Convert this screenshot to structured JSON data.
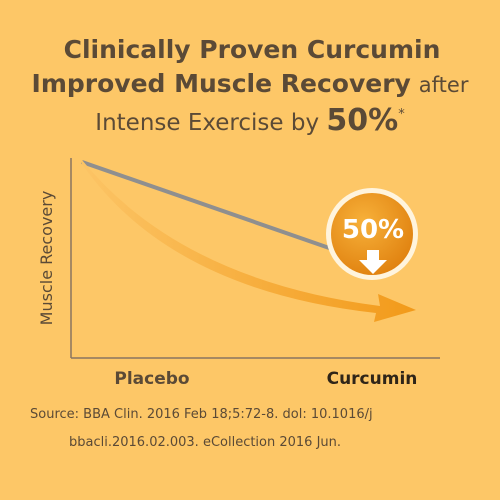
{
  "title": {
    "line1": "Clinically Proven Curcumin",
    "line2": "Improved Muscle Recovery",
    "line2_suffix": "after",
    "line3": "Intense Exercise by",
    "line3_emphasis": "50%",
    "line3_mark": "*"
  },
  "chart": {
    "y_axis_label": "Muscle Recovery",
    "x_labels": [
      "Placebo",
      "Curcumin"
    ],
    "badge": "50%"
  },
  "source": {
    "line1": "Source: BBA Clin. 2016 Feb 18;5:72-8. dol: 10.1016/j",
    "line2": "bbacli.2016.02.003. eCollection 2016 Jun."
  }
}
